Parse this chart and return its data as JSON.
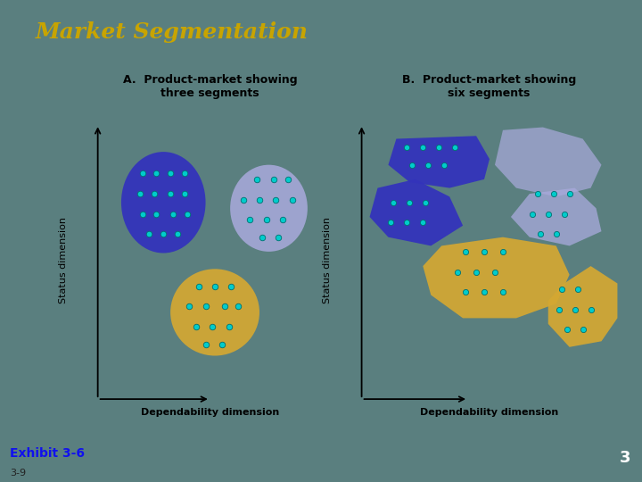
{
  "title": "Market Segmentation",
  "title_color": "#C8A400",
  "bg_color": "#5A7F7F",
  "panel_bg": "#FFFFFF",
  "label_A": "A.  Product-market showing\nthree segments",
  "label_B": "B.  Product-market showing\nsix segments",
  "ylabel": "Status dimension",
  "xlabel": "Dependability dimension",
  "footer_text": "Exhibit 3-6",
  "footer_sub": "3-9",
  "page_num": "3",
  "dot_color": "#00CCCC",
  "dot_edge": "#007070",
  "blue_dark": "#3333BB",
  "blue_light": "#AAAADD",
  "gold": "#D4A832",
  "label_fontsize": 9,
  "axis_label_fontsize": 8
}
